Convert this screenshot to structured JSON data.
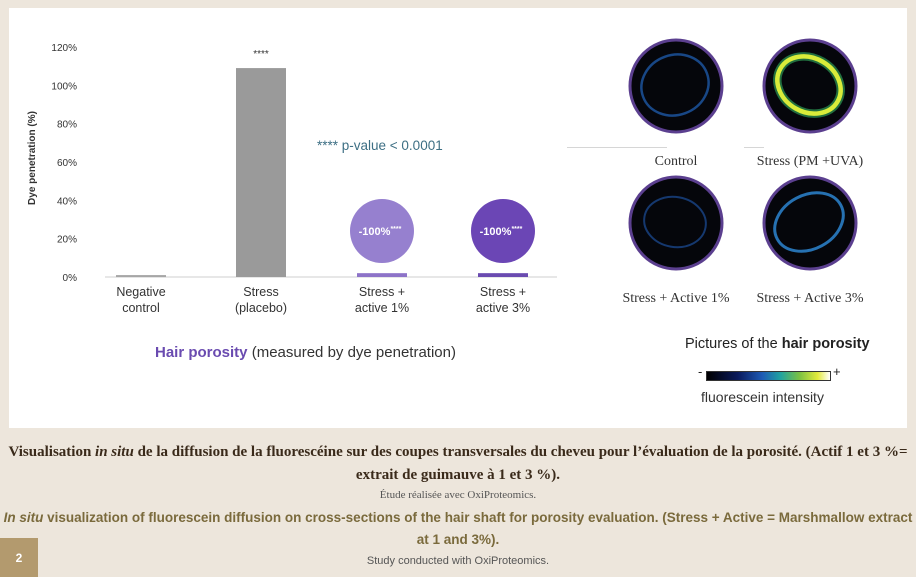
{
  "chart_data": {
    "type": "bar",
    "ylabel": "Dye penetration (%)",
    "ylim": [
      0,
      120
    ],
    "yticks": [
      "0%",
      "20%",
      "40%",
      "60%",
      "80%",
      "100%",
      "120%"
    ],
    "categories": [
      [
        "Negative",
        "control"
      ],
      [
        "Stress",
        "(placebo)"
      ],
      [
        "Stress +",
        "active 1%"
      ],
      [
        "Stress +",
        "active 3%"
      ]
    ],
    "values": [
      1,
      109,
      2,
      2
    ],
    "bar_colors": [
      "#a6a6a6",
      "#9a9a9a",
      "#8d73c8",
      "#6a4bb0"
    ],
    "significance": {
      "bar_index": 1,
      "label": "****"
    },
    "annotation": "**** p-value < 0.0001",
    "badges": [
      {
        "bar_index": 2,
        "label": "-100%",
        "stars": "****",
        "color": "#9680cf"
      },
      {
        "bar_index": 3,
        "label": "-100%",
        "stars": "****",
        "color": "#6b46b5"
      }
    ],
    "title_highlight": "Hair porosity",
    "title_rest": " (measured by dye penetration)",
    "title_color": "#6a4bb0",
    "grid": false,
    "legend": "none"
  },
  "pictures": {
    "items": [
      {
        "label": "Control",
        "ring_color": "#1f5db0",
        "intensity": "low"
      },
      {
        "label": "Stress (PM +UVA)",
        "ring_color": "#d9ec3a",
        "intensity": "high"
      },
      {
        "label": "Stress + Active 1%",
        "ring_color": "#1c4f9a",
        "intensity": "low"
      },
      {
        "label": "Stress + Active 3%",
        "ring_color": "#2a7dc4",
        "intensity": "medium"
      }
    ],
    "caption_prefix": "Pictures of the ",
    "caption_bold": "hair porosity",
    "scale_minus": "-",
    "scale_plus": "+",
    "scale_label": "fluorescein intensity",
    "thumb_border_color": "#5b3f8f"
  },
  "captions": {
    "fr_prefix": "Visualisation ",
    "fr_italic": "in situ",
    "fr_rest": " de la diffusion de la fluorescéine sur des coupes transversales du cheveu pour l’évaluation de la porosité. (Actif 1 et 3 %= extrait de guimauve à 1 et 3 %).",
    "fr_study": "Étude réalisée avec OxiProteomics.",
    "en_italic": "In situ",
    "en_rest": " visualization of fluorescein diffusion on cross-sections of the hair shaft for porosity evaluation. (Stress + Active = Marshmallow extract at 1 and 3%).",
    "en_study": "Study conducted with OxiProteomics."
  },
  "page_number": "2"
}
